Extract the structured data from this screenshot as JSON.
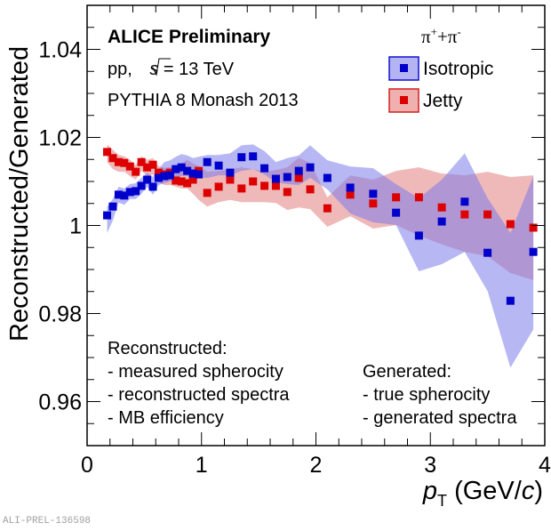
{
  "chart_data": {
    "type": "scatter",
    "title": "",
    "xlabel": "p_T (GeV/c)",
    "xlabel_parts": {
      "var": "p",
      "sub": "T",
      "unit_open": " (GeV/",
      "unit_var": "c",
      "unit_close": ")"
    },
    "ylabel": "Reconstructed/Generated",
    "xlim": [
      0,
      4
    ],
    "ylim": [
      0.95,
      1.05
    ],
    "x_ticks": [
      0,
      1,
      2,
      3,
      4
    ],
    "x_tick_labels": [
      "0",
      "1",
      "2",
      "3",
      "4"
    ],
    "x_minor_step": 0.2,
    "y_ticks": [
      0.96,
      0.98,
      1.0,
      1.02,
      1.04
    ],
    "y_tick_labels": [
      "0.96",
      "0.98",
      "1",
      "1.02",
      "1.04"
    ],
    "y_minor_step": 0.005,
    "grid": false,
    "legend_position": "top-right",
    "legend_header": {
      "base": "π",
      "sup1": "+",
      "plus": "+",
      "base2": "π",
      "sup2": "-"
    },
    "x": [
      0.175,
      0.225,
      0.275,
      0.325,
      0.375,
      0.425,
      0.475,
      0.525,
      0.575,
      0.625,
      0.675,
      0.725,
      0.775,
      0.825,
      0.875,
      0.925,
      0.975,
      1.05,
      1.15,
      1.25,
      1.35,
      1.45,
      1.55,
      1.65,
      1.75,
      1.85,
      1.95,
      2.1,
      2.3,
      2.5,
      2.7,
      2.9,
      3.1,
      3.3,
      3.5,
      3.7,
      3.9
    ],
    "series": [
      {
        "name": "Isotropic",
        "color": "#0000cc",
        "band_color": "#7b7bea",
        "values": [
          1.0023,
          1.0043,
          1.007,
          1.0068,
          1.0076,
          1.0078,
          1.009,
          1.0104,
          1.0088,
          1.0108,
          1.0112,
          1.0114,
          1.0128,
          1.0132,
          1.0124,
          1.0118,
          1.0116,
          1.0144,
          1.0136,
          1.012,
          1.0155,
          1.0157,
          1.013,
          1.0106,
          1.011,
          1.0124,
          1.0132,
          1.0108,
          1.0086,
          1.0072,
          1.0029,
          0.9977,
          1.0009,
          1.0054,
          0.9938,
          0.9829,
          0.994
        ],
        "band_upper": [
          1.0043,
          1.006,
          1.0088,
          1.0084,
          1.0094,
          1.0096,
          1.0108,
          1.012,
          1.011,
          1.0128,
          1.0144,
          1.0148,
          1.0156,
          1.0162,
          1.0159,
          1.0153,
          1.0156,
          1.016,
          1.016,
          1.0164,
          1.0182,
          1.0184,
          1.0169,
          1.0144,
          1.0153,
          1.0159,
          1.0182,
          1.0148,
          1.0134,
          1.013,
          1.0094,
          1.0062,
          1.0104,
          1.0164,
          1.0062,
          0.9983,
          1.0112
        ],
        "band_lower": [
          0.9983,
          1.0011,
          1.0052,
          1.0047,
          1.006,
          1.006,
          1.0072,
          1.0088,
          1.007,
          1.0092,
          1.0096,
          1.01,
          1.0108,
          1.0112,
          1.0112,
          1.0112,
          1.0108,
          1.0108,
          1.0114,
          1.0114,
          1.0124,
          1.0128,
          1.0116,
          1.0098,
          1.0094,
          1.0092,
          1.0108,
          1.0082,
          1.0027,
          1.0007,
          1.0001,
          0.9896,
          0.9912,
          0.994,
          0.9851,
          0.9677,
          0.9764
        ]
      },
      {
        "name": "Jetty",
        "color": "#dd0000",
        "band_color": "#e58a8a",
        "values": [
          1.0167,
          1.0153,
          1.0144,
          1.0142,
          1.0134,
          1.0122,
          1.0144,
          1.0132,
          1.0138,
          1.012,
          1.0116,
          1.012,
          1.0102,
          1.01,
          1.0096,
          1.0104,
          1.0124,
          1.0074,
          1.0088,
          1.0104,
          1.0084,
          1.01,
          1.009,
          1.009,
          1.0076,
          1.0108,
          1.0082,
          1.0039,
          1.007,
          1.005,
          1.0064,
          1.0064,
          1.0041,
          1.0025,
          1.0025,
          1.0003,
          0.9995
        ],
        "band_upper": [
          1.0184,
          1.0172,
          1.016,
          1.0157,
          1.0149,
          1.0137,
          1.0157,
          1.0149,
          1.0153,
          1.0135,
          1.0131,
          1.0133,
          1.0131,
          1.0141,
          1.0149,
          1.0141,
          1.0135,
          1.0122,
          1.0124,
          1.0128,
          1.0132,
          1.0128,
          1.0122,
          1.0126,
          1.0132,
          1.0154,
          1.0142,
          1.0064,
          1.0114,
          1.0104,
          1.0124,
          1.0132,
          1.0118,
          1.0114,
          1.0122,
          1.011,
          1.0114
        ],
        "band_lower": [
          1.0144,
          1.0128,
          1.0122,
          1.0122,
          1.0112,
          1.0104,
          1.0124,
          1.0112,
          1.0116,
          1.0098,
          1.0092,
          1.0092,
          1.0088,
          1.0084,
          1.0084,
          1.0072,
          1.0058,
          1.0043,
          1.0053,
          1.0058,
          1.0053,
          1.0053,
          1.0053,
          1.0051,
          1.0035,
          1.0041,
          1.0037,
          0.9997,
          1.0021,
          0.9993,
          1.0001,
          0.9977,
          0.9957,
          0.994,
          0.993,
          0.9892,
          0.9876
        ]
      }
    ],
    "annotations": {
      "experiment": "ALICE Preliminary",
      "system_prefix": "pp, ",
      "sqrt_s_symbol": "s",
      "system_suffix": " = 13 TeV",
      "generator": "PYTHIA 8 Monash 2013",
      "reconstructed_title": "Reconstructed:",
      "reconstructed_items": [
        "- measured spherocity",
        "- reconstructed spectra",
        "- MB efficiency"
      ],
      "generated_title": "Generated:",
      "generated_items": [
        "- true spherocity",
        "- generated spectra"
      ]
    }
  },
  "watermark": "ALI-PREL-136598"
}
